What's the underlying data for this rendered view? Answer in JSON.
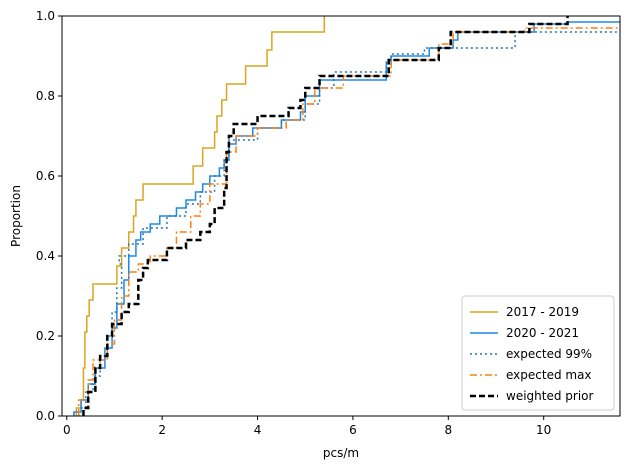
{
  "chart_data": {
    "type": "line",
    "subtype": "empirical-cdf-step",
    "title": "",
    "xlabel": "pcs/m",
    "ylabel": "Proportion",
    "xlim": [
      -0.1,
      11.6
    ],
    "ylim": [
      0,
      1.0
    ],
    "xticks": [
      0,
      2,
      4,
      6,
      8,
      10
    ],
    "yticks": [
      0.0,
      0.2,
      0.4,
      0.6,
      0.8,
      1.0
    ],
    "xtick_labels": [
      "0",
      "2",
      "4",
      "6",
      "8",
      "10"
    ],
    "ytick_labels": [
      "0.0",
      "0.2",
      "0.4",
      "0.6",
      "0.8",
      "1.0"
    ],
    "grid": false,
    "legend_position": "lower-right",
    "series": [
      {
        "name": "2017 - 2019",
        "color": "#DAA520",
        "style": "solid",
        "points": [
          [
            0.2,
            0
          ],
          [
            0.2,
            0.02
          ],
          [
            0.3,
            0.02
          ],
          [
            0.3,
            0.04
          ],
          [
            0.35,
            0.04
          ],
          [
            0.35,
            0.12
          ],
          [
            0.38,
            0.12
          ],
          [
            0.38,
            0.21
          ],
          [
            0.42,
            0.21
          ],
          [
            0.42,
            0.25
          ],
          [
            0.47,
            0.25
          ],
          [
            0.47,
            0.29
          ],
          [
            0.55,
            0.29
          ],
          [
            0.55,
            0.33
          ],
          [
            1.05,
            0.33
          ],
          [
            1.05,
            0.375
          ],
          [
            1.15,
            0.375
          ],
          [
            1.15,
            0.42
          ],
          [
            1.3,
            0.42
          ],
          [
            1.3,
            0.46
          ],
          [
            1.4,
            0.46
          ],
          [
            1.4,
            0.5
          ],
          [
            1.45,
            0.5
          ],
          [
            1.45,
            0.54
          ],
          [
            1.6,
            0.54
          ],
          [
            1.6,
            0.58
          ],
          [
            2.65,
            0.58
          ],
          [
            2.65,
            0.625
          ],
          [
            2.85,
            0.625
          ],
          [
            2.85,
            0.67
          ],
          [
            3.1,
            0.67
          ],
          [
            3.1,
            0.71
          ],
          [
            3.15,
            0.71
          ],
          [
            3.15,
            0.75
          ],
          [
            3.25,
            0.75
          ],
          [
            3.25,
            0.79
          ],
          [
            3.35,
            0.79
          ],
          [
            3.35,
            0.83
          ],
          [
            3.75,
            0.83
          ],
          [
            3.75,
            0.875
          ],
          [
            4.2,
            0.875
          ],
          [
            4.2,
            0.915
          ],
          [
            4.3,
            0.915
          ],
          [
            4.3,
            0.96
          ],
          [
            5.4,
            0.96
          ],
          [
            5.4,
            1.0
          ]
        ]
      },
      {
        "name": "2020 - 2021",
        "color": "#1E88E5",
        "style": "solid",
        "points": [
          [
            0.15,
            0
          ],
          [
            0.15,
            0.01
          ],
          [
            0.3,
            0.01
          ],
          [
            0.3,
            0.04
          ],
          [
            0.45,
            0.04
          ],
          [
            0.45,
            0.08
          ],
          [
            0.6,
            0.08
          ],
          [
            0.6,
            0.12
          ],
          [
            0.8,
            0.12
          ],
          [
            0.8,
            0.17
          ],
          [
            0.95,
            0.17
          ],
          [
            0.95,
            0.22
          ],
          [
            1.05,
            0.22
          ],
          [
            1.05,
            0.28
          ],
          [
            1.2,
            0.28
          ],
          [
            1.2,
            0.34
          ],
          [
            1.3,
            0.34
          ],
          [
            1.3,
            0.4
          ],
          [
            1.45,
            0.4
          ],
          [
            1.45,
            0.44
          ],
          [
            1.55,
            0.44
          ],
          [
            1.55,
            0.46
          ],
          [
            1.75,
            0.46
          ],
          [
            1.75,
            0.48
          ],
          [
            1.95,
            0.48
          ],
          [
            1.95,
            0.5
          ],
          [
            2.3,
            0.5
          ],
          [
            2.3,
            0.52
          ],
          [
            2.5,
            0.52
          ],
          [
            2.5,
            0.54
          ],
          [
            2.7,
            0.54
          ],
          [
            2.7,
            0.56
          ],
          [
            2.85,
            0.56
          ],
          [
            2.85,
            0.58
          ],
          [
            3.0,
            0.58
          ],
          [
            3.0,
            0.6
          ],
          [
            3.2,
            0.6
          ],
          [
            3.2,
            0.62
          ],
          [
            3.3,
            0.62
          ],
          [
            3.3,
            0.64
          ],
          [
            3.4,
            0.64
          ],
          [
            3.4,
            0.68
          ],
          [
            3.55,
            0.68
          ],
          [
            3.55,
            0.7
          ],
          [
            3.9,
            0.7
          ],
          [
            3.9,
            0.72
          ],
          [
            4.5,
            0.72
          ],
          [
            4.5,
            0.74
          ],
          [
            4.9,
            0.74
          ],
          [
            4.9,
            0.76
          ],
          [
            5.0,
            0.76
          ],
          [
            5.0,
            0.8
          ],
          [
            5.3,
            0.8
          ],
          [
            5.3,
            0.84
          ],
          [
            6.7,
            0.84
          ],
          [
            6.7,
            0.88
          ],
          [
            6.8,
            0.88
          ],
          [
            6.8,
            0.9
          ],
          [
            7.6,
            0.9
          ],
          [
            7.6,
            0.92
          ],
          [
            8.1,
            0.92
          ],
          [
            8.1,
            0.94
          ],
          [
            8.2,
            0.94
          ],
          [
            8.2,
            0.96
          ],
          [
            9.8,
            0.96
          ],
          [
            9.8,
            0.98
          ],
          [
            10.5,
            0.98
          ],
          [
            10.5,
            0.985
          ],
          [
            11.6,
            0.985
          ]
        ]
      },
      {
        "name": "expected 99%",
        "color": "#1F77B4",
        "style": "dotted",
        "points": [
          [
            0.25,
            0
          ],
          [
            0.25,
            0.02
          ],
          [
            0.4,
            0.02
          ],
          [
            0.4,
            0.06
          ],
          [
            0.55,
            0.06
          ],
          [
            0.55,
            0.1
          ],
          [
            0.7,
            0.1
          ],
          [
            0.7,
            0.15
          ],
          [
            0.85,
            0.15
          ],
          [
            0.85,
            0.2
          ],
          [
            0.95,
            0.2
          ],
          [
            0.95,
            0.26
          ],
          [
            1.05,
            0.26
          ],
          [
            1.05,
            0.32
          ],
          [
            1.15,
            0.32
          ],
          [
            1.15,
            0.38
          ],
          [
            1.1,
            0.38
          ],
          [
            1.1,
            0.4
          ],
          [
            1.3,
            0.4
          ],
          [
            1.3,
            0.43
          ],
          [
            1.6,
            0.43
          ],
          [
            1.6,
            0.47
          ],
          [
            2.1,
            0.47
          ],
          [
            2.1,
            0.5
          ],
          [
            2.5,
            0.5
          ],
          [
            2.5,
            0.53
          ],
          [
            2.8,
            0.53
          ],
          [
            2.8,
            0.56
          ],
          [
            3.1,
            0.56
          ],
          [
            3.1,
            0.6
          ],
          [
            3.3,
            0.6
          ],
          [
            3.3,
            0.64
          ],
          [
            3.4,
            0.64
          ],
          [
            3.4,
            0.69
          ],
          [
            4.0,
            0.69
          ],
          [
            4.0,
            0.72
          ],
          [
            4.5,
            0.72
          ],
          [
            4.5,
            0.74
          ],
          [
            5.0,
            0.74
          ],
          [
            5.0,
            0.78
          ],
          [
            5.3,
            0.78
          ],
          [
            5.3,
            0.82
          ],
          [
            5.6,
            0.82
          ],
          [
            5.6,
            0.86
          ],
          [
            6.7,
            0.86
          ],
          [
            6.7,
            0.89
          ],
          [
            6.8,
            0.89
          ],
          [
            6.8,
            0.905
          ],
          [
            7.5,
            0.905
          ],
          [
            7.5,
            0.92
          ],
          [
            9.4,
            0.92
          ],
          [
            9.4,
            0.96
          ],
          [
            11.6,
            0.96
          ]
        ]
      },
      {
        "name": "expected max",
        "color": "#FF7F0E",
        "style": "dashdot",
        "points": [
          [
            0.25,
            0
          ],
          [
            0.25,
            0.04
          ],
          [
            0.45,
            0.04
          ],
          [
            0.45,
            0.09
          ],
          [
            0.55,
            0.09
          ],
          [
            0.55,
            0.14
          ],
          [
            0.85,
            0.14
          ],
          [
            0.85,
            0.18
          ],
          [
            1.0,
            0.18
          ],
          [
            1.0,
            0.24
          ],
          [
            1.15,
            0.24
          ],
          [
            1.15,
            0.3
          ],
          [
            1.3,
            0.3
          ],
          [
            1.3,
            0.36
          ],
          [
            1.5,
            0.36
          ],
          [
            1.5,
            0.38
          ],
          [
            1.75,
            0.38
          ],
          [
            1.75,
            0.4
          ],
          [
            2.1,
            0.4
          ],
          [
            2.1,
            0.42
          ],
          [
            2.3,
            0.42
          ],
          [
            2.3,
            0.46
          ],
          [
            2.6,
            0.46
          ],
          [
            2.6,
            0.5
          ],
          [
            2.8,
            0.5
          ],
          [
            2.8,
            0.53
          ],
          [
            3.0,
            0.53
          ],
          [
            3.0,
            0.58
          ],
          [
            3.35,
            0.58
          ],
          [
            3.35,
            0.66
          ],
          [
            3.55,
            0.66
          ],
          [
            3.55,
            0.7
          ],
          [
            4.0,
            0.7
          ],
          [
            4.0,
            0.72
          ],
          [
            4.6,
            0.72
          ],
          [
            4.6,
            0.74
          ],
          [
            4.95,
            0.74
          ],
          [
            4.95,
            0.78
          ],
          [
            5.2,
            0.78
          ],
          [
            5.2,
            0.82
          ],
          [
            5.8,
            0.82
          ],
          [
            5.8,
            0.85
          ],
          [
            6.8,
            0.85
          ],
          [
            6.8,
            0.89
          ],
          [
            7.8,
            0.89
          ],
          [
            7.8,
            0.93
          ],
          [
            8.1,
            0.93
          ],
          [
            8.1,
            0.96
          ],
          [
            9.6,
            0.96
          ],
          [
            9.6,
            0.97
          ],
          [
            11.6,
            0.97
          ]
        ]
      },
      {
        "name": "weighted prior",
        "color": "#000000",
        "style": "dashed",
        "points": [
          [
            0.35,
            0
          ],
          [
            0.35,
            0.02
          ],
          [
            0.45,
            0.02
          ],
          [
            0.45,
            0.06
          ],
          [
            0.6,
            0.06
          ],
          [
            0.6,
            0.12
          ],
          [
            0.7,
            0.12
          ],
          [
            0.7,
            0.15
          ],
          [
            0.85,
            0.15
          ],
          [
            0.85,
            0.2
          ],
          [
            0.95,
            0.2
          ],
          [
            0.95,
            0.23
          ],
          [
            1.15,
            0.23
          ],
          [
            1.15,
            0.26
          ],
          [
            1.3,
            0.26
          ],
          [
            1.3,
            0.28
          ],
          [
            1.5,
            0.28
          ],
          [
            1.5,
            0.34
          ],
          [
            1.6,
            0.34
          ],
          [
            1.6,
            0.37
          ],
          [
            1.7,
            0.37
          ],
          [
            1.7,
            0.39
          ],
          [
            2.1,
            0.39
          ],
          [
            2.1,
            0.42
          ],
          [
            2.5,
            0.42
          ],
          [
            2.5,
            0.44
          ],
          [
            2.8,
            0.44
          ],
          [
            2.8,
            0.46
          ],
          [
            3.0,
            0.46
          ],
          [
            3.0,
            0.48
          ],
          [
            3.1,
            0.48
          ],
          [
            3.1,
            0.52
          ],
          [
            3.3,
            0.52
          ],
          [
            3.3,
            0.57
          ],
          [
            3.35,
            0.57
          ],
          [
            3.35,
            0.66
          ],
          [
            3.4,
            0.66
          ],
          [
            3.4,
            0.7
          ],
          [
            3.5,
            0.7
          ],
          [
            3.5,
            0.73
          ],
          [
            4.0,
            0.73
          ],
          [
            4.0,
            0.75
          ],
          [
            4.65,
            0.75
          ],
          [
            4.65,
            0.77
          ],
          [
            4.9,
            0.77
          ],
          [
            4.9,
            0.79
          ],
          [
            5.0,
            0.79
          ],
          [
            5.0,
            0.82
          ],
          [
            5.3,
            0.82
          ],
          [
            5.3,
            0.85
          ],
          [
            6.75,
            0.85
          ],
          [
            6.75,
            0.89
          ],
          [
            7.8,
            0.89
          ],
          [
            7.8,
            0.92
          ],
          [
            8.05,
            0.92
          ],
          [
            8.05,
            0.96
          ],
          [
            9.7,
            0.96
          ],
          [
            9.7,
            0.98
          ],
          [
            10.5,
            0.98
          ],
          [
            10.5,
            1.0
          ]
        ]
      }
    ]
  }
}
